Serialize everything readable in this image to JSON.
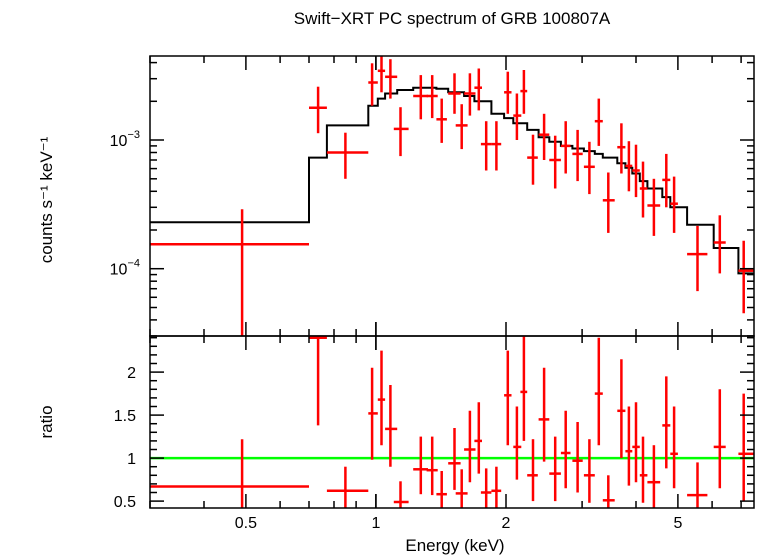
{
  "chart_data": [
    {
      "type": "scatter",
      "title": "Swift−XRT PC spectrum of GRB 100807A",
      "xlabel": "",
      "ylabel": "counts s⁻¹ keV⁻¹",
      "xscale": "log",
      "yscale": "log",
      "xlim": [
        0.3,
        7.5
      ],
      "ylim": [
        3e-05,
        0.0045
      ],
      "yticks": [
        {
          "value": 0.001,
          "base": "10",
          "exp": "−3"
        },
        {
          "value": 0.0001,
          "base": "10",
          "exp": "−4"
        }
      ],
      "colors": {
        "data": "#ff0000",
        "model": "#000000"
      },
      "series": [
        {
          "points": [
            {
              "x": 0.49,
              "xlo": 0.3,
              "xhi": 0.7,
              "y": 0.000155,
              "ylo": 3e-05,
              "yhi": 0.00029
            },
            {
              "x": 0.735,
              "xlo": 0.7,
              "xhi": 0.77,
              "y": 0.00178,
              "ylo": 0.00113,
              "yhi": 0.0026
            },
            {
              "x": 0.85,
              "xlo": 0.77,
              "xhi": 0.96,
              "y": 0.0008,
              "ylo": 0.0005,
              "yhi": 0.00114
            },
            {
              "x": 0.98,
              "xlo": 0.96,
              "xhi": 1.01,
              "y": 0.0028,
              "ylo": 0.00185,
              "yhi": 0.00395
            },
            {
              "x": 1.03,
              "xlo": 1.01,
              "xhi": 1.05,
              "y": 0.00345,
              "ylo": 0.00235,
              "yhi": 0.0047
            },
            {
              "x": 1.08,
              "xlo": 1.05,
              "xhi": 1.12,
              "y": 0.0031,
              "ylo": 0.0021,
              "yhi": 0.00425
            },
            {
              "x": 1.14,
              "xlo": 1.1,
              "xhi": 1.19,
              "y": 0.00122,
              "ylo": 0.00075,
              "yhi": 0.0018
            },
            {
              "x": 1.27,
              "xlo": 1.22,
              "xhi": 1.32,
              "y": 0.0022,
              "ylo": 0.00145,
              "yhi": 0.0032
            },
            {
              "x": 1.35,
              "xlo": 1.31,
              "xhi": 1.39,
              "y": 0.0022,
              "ylo": 0.00148,
              "yhi": 0.0032
            },
            {
              "x": 1.42,
              "xlo": 1.38,
              "xhi": 1.46,
              "y": 0.00145,
              "ylo": 0.00095,
              "yhi": 0.0021
            },
            {
              "x": 1.52,
              "xlo": 1.47,
              "xhi": 1.57,
              "y": 0.0023,
              "ylo": 0.0016,
              "yhi": 0.0033
            },
            {
              "x": 1.58,
              "xlo": 1.53,
              "xhi": 1.63,
              "y": 0.0013,
              "ylo": 0.00085,
              "yhi": 0.0019
            },
            {
              "x": 1.65,
              "xlo": 1.6,
              "xhi": 1.7,
              "y": 0.0023,
              "ylo": 0.00155,
              "yhi": 0.0033
            },
            {
              "x": 1.73,
              "xlo": 1.69,
              "xhi": 1.76,
              "y": 0.00255,
              "ylo": 0.0017,
              "yhi": 0.0036
            },
            {
              "x": 1.8,
              "xlo": 1.75,
              "xhi": 1.85,
              "y": 0.00093,
              "ylo": 0.00058,
              "yhi": 0.0014
            },
            {
              "x": 1.9,
              "xlo": 1.85,
              "xhi": 1.95,
              "y": 0.00093,
              "ylo": 0.00058,
              "yhi": 0.0014
            },
            {
              "x": 2.02,
              "xlo": 1.98,
              "xhi": 2.06,
              "y": 0.00235,
              "ylo": 0.0016,
              "yhi": 0.0034
            },
            {
              "x": 2.12,
              "xlo": 2.08,
              "xhi": 2.17,
              "y": 0.00155,
              "ylo": 0.001,
              "yhi": 0.0023
            },
            {
              "x": 2.2,
              "xlo": 2.16,
              "xhi": 2.24,
              "y": 0.0024,
              "ylo": 0.0016,
              "yhi": 0.0035
            },
            {
              "x": 2.31,
              "xlo": 2.24,
              "xhi": 2.37,
              "y": 0.00073,
              "ylo": 0.00045,
              "yhi": 0.0011
            },
            {
              "x": 2.45,
              "xlo": 2.38,
              "xhi": 2.52,
              "y": 0.0011,
              "ylo": 0.0007,
              "yhi": 0.0016
            },
            {
              "x": 2.6,
              "xlo": 2.52,
              "xhi": 2.68,
              "y": 0.0007,
              "ylo": 0.00042,
              "yhi": 0.00108
            },
            {
              "x": 2.75,
              "xlo": 2.68,
              "xhi": 2.82,
              "y": 0.0009,
              "ylo": 0.00055,
              "yhi": 0.0014
            },
            {
              "x": 2.93,
              "xlo": 2.85,
              "xhi": 3.01,
              "y": 0.00078,
              "ylo": 0.00048,
              "yhi": 0.0012
            },
            {
              "x": 3.12,
              "xlo": 3.03,
              "xhi": 3.21,
              "y": 0.00062,
              "ylo": 0.00038,
              "yhi": 0.00097
            },
            {
              "x": 3.28,
              "xlo": 3.21,
              "xhi": 3.35,
              "y": 0.0014,
              "ylo": 0.0009,
              "yhi": 0.0021
            },
            {
              "x": 3.45,
              "xlo": 3.35,
              "xhi": 3.57,
              "y": 0.00034,
              "ylo": 0.00019,
              "yhi": 0.00056
            },
            {
              "x": 3.7,
              "xlo": 3.62,
              "xhi": 3.78,
              "y": 0.00088,
              "ylo": 0.00055,
              "yhi": 0.00135
            },
            {
              "x": 3.85,
              "xlo": 3.78,
              "xhi": 3.92,
              "y": 0.00063,
              "ylo": 0.0004,
              "yhi": 0.00098
            },
            {
              "x": 4.0,
              "xlo": 3.92,
              "xhi": 4.08,
              "y": 0.00058,
              "ylo": 0.00036,
              "yhi": 0.00092
            },
            {
              "x": 4.15,
              "xlo": 4.08,
              "xhi": 4.25,
              "y": 0.00042,
              "ylo": 0.00025,
              "yhi": 0.00068
            },
            {
              "x": 4.4,
              "xlo": 4.25,
              "xhi": 4.55,
              "y": 0.00031,
              "ylo": 0.00018,
              "yhi": 0.0005
            },
            {
              "x": 4.7,
              "xlo": 4.6,
              "xhi": 4.8,
              "y": 0.00049,
              "ylo": 0.0003,
              "yhi": 0.00078
            },
            {
              "x": 4.9,
              "xlo": 4.8,
              "xhi": 5.0,
              "y": 0.00032,
              "ylo": 0.00019,
              "yhi": 0.00052
            },
            {
              "x": 5.55,
              "xlo": 5.25,
              "xhi": 5.85,
              "y": 0.00013,
              "ylo": 6.7e-05,
              "yhi": 0.000215
            },
            {
              "x": 6.25,
              "xlo": 6.05,
              "xhi": 6.45,
              "y": 0.00016,
              "ylo": 9.2e-05,
              "yhi": 0.00026
            },
            {
              "x": 7.1,
              "xlo": 6.9,
              "xhi": 7.5,
              "y": 9.65e-05,
              "ylo": 4.5e-05,
              "yhi": 0.000165
            }
          ]
        }
      ],
      "model_step": [
        {
          "x0": 0.3,
          "x1": 0.7,
          "y": 0.00023
        },
        {
          "x0": 0.7,
          "x1": 0.77,
          "y": 0.00073
        },
        {
          "x0": 0.77,
          "x1": 0.96,
          "y": 0.0013
        },
        {
          "x0": 0.96,
          "x1": 1.01,
          "y": 0.00185
        },
        {
          "x0": 1.01,
          "x1": 1.05,
          "y": 0.0021
        },
        {
          "x0": 1.05,
          "x1": 1.12,
          "y": 0.0023
        },
        {
          "x0": 1.12,
          "x1": 1.22,
          "y": 0.00245
        },
        {
          "x0": 1.22,
          "x1": 1.38,
          "y": 0.00255
        },
        {
          "x0": 1.38,
          "x1": 1.47,
          "y": 0.0025
        },
        {
          "x0": 1.47,
          "x1": 1.6,
          "y": 0.00235
        },
        {
          "x0": 1.6,
          "x1": 1.69,
          "y": 0.0022
        },
        {
          "x0": 1.69,
          "x1": 1.85,
          "y": 0.002
        },
        {
          "x0": 1.85,
          "x1": 1.98,
          "y": 0.0016
        },
        {
          "x0": 1.98,
          "x1": 2.08,
          "y": 0.00148
        },
        {
          "x0": 2.08,
          "x1": 2.24,
          "y": 0.00135
        },
        {
          "x0": 2.24,
          "x1": 2.38,
          "y": 0.0012
        },
        {
          "x0": 2.38,
          "x1": 2.52,
          "y": 0.00105
        },
        {
          "x0": 2.52,
          "x1": 2.68,
          "y": 0.00097
        },
        {
          "x0": 2.68,
          "x1": 2.85,
          "y": 0.0009
        },
        {
          "x0": 2.85,
          "x1": 3.03,
          "y": 0.00086
        },
        {
          "x0": 3.03,
          "x1": 3.21,
          "y": 0.00082
        },
        {
          "x0": 3.21,
          "x1": 3.35,
          "y": 0.00078
        },
        {
          "x0": 3.35,
          "x1": 3.62,
          "y": 0.00073
        },
        {
          "x0": 3.62,
          "x1": 3.78,
          "y": 0.00066
        },
        {
          "x0": 3.78,
          "x1": 3.92,
          "y": 0.00061
        },
        {
          "x0": 3.92,
          "x1": 4.08,
          "y": 0.00055
        },
        {
          "x0": 4.08,
          "x1": 4.25,
          "y": 0.00048
        },
        {
          "x0": 4.25,
          "x1": 4.6,
          "y": 0.00042
        },
        {
          "x0": 4.6,
          "x1": 4.8,
          "y": 0.00036
        },
        {
          "x0": 4.8,
          "x1": 5.25,
          "y": 0.0003
        },
        {
          "x0": 5.25,
          "x1": 6.05,
          "y": 0.00022
        },
        {
          "x0": 6.05,
          "x1": 6.9,
          "y": 0.000145
        },
        {
          "x0": 6.9,
          "x1": 7.5,
          "y": 9.2e-05
        }
      ]
    },
    {
      "type": "scatter",
      "title": "",
      "xlabel": "Energy (keV)",
      "ylabel": "ratio",
      "xscale": "log",
      "yscale": "linear",
      "xlim": [
        0.3,
        7.5
      ],
      "ylim": [
        0.42,
        2.42
      ],
      "xticks": [
        {
          "value": 0.5,
          "label": "0.5"
        },
        {
          "value": 1,
          "label": "1"
        },
        {
          "value": 2,
          "label": "2"
        },
        {
          "value": 5,
          "label": "5"
        }
      ],
      "yticks": [
        {
          "value": 0.5,
          "label": "0.5"
        },
        {
          "value": 1,
          "label": "1"
        },
        {
          "value": 1.5,
          "label": "1.5"
        },
        {
          "value": 2,
          "label": "2"
        }
      ],
      "reference_line": {
        "y": 1,
        "color": "#00ff00"
      },
      "colors": {
        "data": "#ff0000"
      },
      "series": [
        {
          "points": [
            {
              "x": 0.49,
              "xlo": 0.3,
              "xhi": 0.7,
              "y": 0.67,
              "ylo": 0.42,
              "yhi": 1.22
            },
            {
              "x": 0.735,
              "xlo": 0.7,
              "xhi": 0.77,
              "y": 2.4,
              "ylo": 1.38,
              "yhi": 2.42
            },
            {
              "x": 0.85,
              "xlo": 0.77,
              "xhi": 0.96,
              "y": 0.62,
              "ylo": 0.42,
              "yhi": 0.9
            },
            {
              "x": 0.98,
              "xlo": 0.96,
              "xhi": 1.01,
              "y": 1.52,
              "ylo": 0.98,
              "yhi": 2.05
            },
            {
              "x": 1.03,
              "xlo": 1.01,
              "xhi": 1.05,
              "y": 1.68,
              "ylo": 1.15,
              "yhi": 2.25
            },
            {
              "x": 1.08,
              "xlo": 1.05,
              "xhi": 1.12,
              "y": 1.34,
              "ylo": 0.9,
              "yhi": 1.85
            },
            {
              "x": 1.14,
              "xlo": 1.1,
              "xhi": 1.19,
              "y": 0.49,
              "ylo": 0.42,
              "yhi": 0.73
            },
            {
              "x": 1.27,
              "xlo": 1.22,
              "xhi": 1.32,
              "y": 0.87,
              "ylo": 0.58,
              "yhi": 1.25
            },
            {
              "x": 1.35,
              "xlo": 1.31,
              "xhi": 1.39,
              "y": 0.86,
              "ylo": 0.57,
              "yhi": 1.25
            },
            {
              "x": 1.42,
              "xlo": 1.38,
              "xhi": 1.46,
              "y": 0.58,
              "ylo": 0.42,
              "yhi": 0.85
            },
            {
              "x": 1.52,
              "xlo": 1.47,
              "xhi": 1.57,
              "y": 0.94,
              "ylo": 0.63,
              "yhi": 1.35
            },
            {
              "x": 1.58,
              "xlo": 1.53,
              "xhi": 1.63,
              "y": 0.59,
              "ylo": 0.42,
              "yhi": 0.87
            },
            {
              "x": 1.65,
              "xlo": 1.6,
              "xhi": 1.7,
              "y": 1.1,
              "ylo": 0.72,
              "yhi": 1.55
            },
            {
              "x": 1.73,
              "xlo": 1.69,
              "xhi": 1.76,
              "y": 1.2,
              "ylo": 0.82,
              "yhi": 1.65
            },
            {
              "x": 1.8,
              "xlo": 1.75,
              "xhi": 1.85,
              "y": 0.6,
              "ylo": 0.42,
              "yhi": 0.88
            },
            {
              "x": 1.9,
              "xlo": 1.85,
              "xhi": 1.95,
              "y": 0.62,
              "ylo": 0.42,
              "yhi": 0.9
            },
            {
              "x": 2.02,
              "xlo": 1.98,
              "xhi": 2.06,
              "y": 1.73,
              "ylo": 1.15,
              "yhi": 2.25
            },
            {
              "x": 2.12,
              "xlo": 2.08,
              "xhi": 2.17,
              "y": 1.13,
              "ylo": 0.75,
              "yhi": 1.6
            },
            {
              "x": 2.2,
              "xlo": 2.16,
              "xhi": 2.24,
              "y": 1.77,
              "ylo": 1.2,
              "yhi": 2.42
            },
            {
              "x": 2.31,
              "xlo": 2.24,
              "xhi": 2.37,
              "y": 0.8,
              "ylo": 0.5,
              "yhi": 1.22
            },
            {
              "x": 2.45,
              "xlo": 2.38,
              "xhi": 2.52,
              "y": 1.45,
              "ylo": 0.96,
              "yhi": 2.05
            },
            {
              "x": 2.6,
              "xlo": 2.52,
              "xhi": 2.68,
              "y": 0.82,
              "ylo": 0.5,
              "yhi": 1.25
            },
            {
              "x": 2.75,
              "xlo": 2.68,
              "xhi": 2.82,
              "y": 1.06,
              "ylo": 0.65,
              "yhi": 1.55
            },
            {
              "x": 2.93,
              "xlo": 2.85,
              "xhi": 3.01,
              "y": 0.97,
              "ylo": 0.6,
              "yhi": 1.42
            },
            {
              "x": 3.12,
              "xlo": 3.03,
              "xhi": 3.21,
              "y": 0.8,
              "ylo": 0.48,
              "yhi": 1.22
            },
            {
              "x": 3.28,
              "xlo": 3.21,
              "xhi": 3.35,
              "y": 1.75,
              "ylo": 1.15,
              "yhi": 2.4
            },
            {
              "x": 3.45,
              "xlo": 3.35,
              "xhi": 3.57,
              "y": 0.51,
              "ylo": 0.42,
              "yhi": 0.8
            },
            {
              "x": 3.7,
              "xlo": 3.62,
              "xhi": 3.78,
              "y": 1.55,
              "ylo": 1.0,
              "yhi": 2.15
            },
            {
              "x": 3.85,
              "xlo": 3.78,
              "xhi": 3.92,
              "y": 1.08,
              "ylo": 0.68,
              "yhi": 1.6
            },
            {
              "x": 4.0,
              "xlo": 3.92,
              "xhi": 4.08,
              "y": 1.13,
              "ylo": 0.72,
              "yhi": 1.65
            },
            {
              "x": 4.15,
              "xlo": 4.08,
              "xhi": 4.25,
              "y": 0.8,
              "ylo": 0.48,
              "yhi": 1.25
            },
            {
              "x": 4.4,
              "xlo": 4.25,
              "xhi": 4.55,
              "y": 0.72,
              "ylo": 0.42,
              "yhi": 1.15
            },
            {
              "x": 4.7,
              "xlo": 4.6,
              "xhi": 4.8,
              "y": 1.38,
              "ylo": 0.88,
              "yhi": 1.95
            },
            {
              "x": 4.9,
              "xlo": 4.8,
              "xhi": 5.0,
              "y": 1.05,
              "ylo": 0.65,
              "yhi": 1.6
            },
            {
              "x": 5.55,
              "xlo": 5.25,
              "xhi": 5.85,
              "y": 0.57,
              "ylo": 0.42,
              "yhi": 0.95
            },
            {
              "x": 6.25,
              "xlo": 6.05,
              "xhi": 6.45,
              "y": 1.13,
              "ylo": 0.65,
              "yhi": 1.8
            },
            {
              "x": 7.1,
              "xlo": 6.9,
              "xhi": 7.5,
              "y": 1.05,
              "ylo": 0.5,
              "yhi": 1.75
            }
          ]
        }
      ]
    }
  ]
}
